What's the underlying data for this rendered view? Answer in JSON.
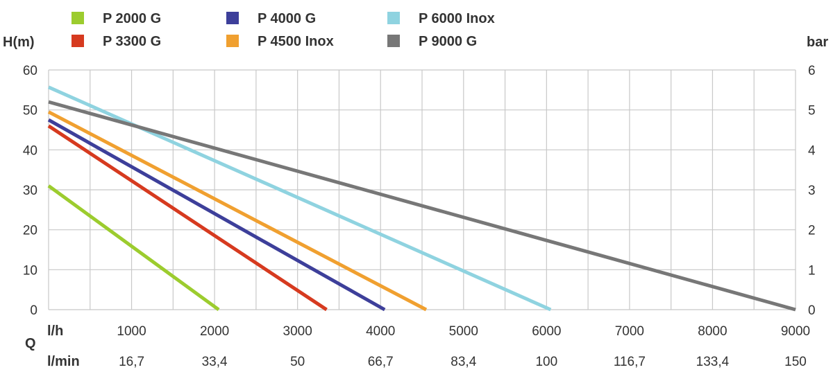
{
  "chart_data": {
    "type": "line",
    "ylabel_left": "H(m)",
    "ylabel_right": "bar",
    "xlabel": "Q",
    "x_unit_top": "l/h",
    "x_unit_bottom": "l/min",
    "xlim": [
      0,
      9000
    ],
    "ylim": [
      0,
      60
    ],
    "y2lim": [
      0,
      6
    ],
    "grid": true,
    "y_ticks": [
      0,
      10,
      20,
      30,
      40,
      50,
      60
    ],
    "y_tick_labels": [
      "0",
      "10",
      "20",
      "30",
      "40",
      "50",
      "60"
    ],
    "y2_tick_labels": [
      "0",
      "1",
      "2",
      "3",
      "4",
      "5",
      "6"
    ],
    "x_ticks": [
      1000,
      2000,
      3000,
      4000,
      5000,
      6000,
      7000,
      8000,
      9000
    ],
    "x_tick_labels_top": [
      "1000",
      "2000",
      "3000",
      "4000",
      "5000",
      "6000",
      "7000",
      "8000",
      "9000"
    ],
    "x_tick_labels_bottom": [
      "16,7",
      "33,4",
      "50",
      "66,7",
      "83,4",
      "100",
      "116,7",
      "133,4",
      "150"
    ],
    "series": [
      {
        "name": "P 2000 G",
        "color": "#9ccc2e",
        "x": [
          0,
          2050
        ],
        "y": [
          31,
          0
        ]
      },
      {
        "name": "P 3300 G",
        "color": "#d63a1f",
        "x": [
          0,
          3350
        ],
        "y": [
          46,
          0
        ]
      },
      {
        "name": "P 4000 G",
        "color": "#3d3f9a",
        "x": [
          0,
          4050
        ],
        "y": [
          47.5,
          0
        ]
      },
      {
        "name": "P 4500 Inox",
        "color": "#f0a030",
        "x": [
          0,
          4550
        ],
        "y": [
          49.5,
          0
        ]
      },
      {
        "name": "P 6000 Inox",
        "color": "#8fd3e0",
        "x": [
          0,
          6050
        ],
        "y": [
          55.7,
          0
        ]
      },
      {
        "name": "P 9000 G",
        "color": "#777777",
        "x": [
          0,
          9000
        ],
        "y": [
          52,
          0
        ]
      }
    ]
  }
}
